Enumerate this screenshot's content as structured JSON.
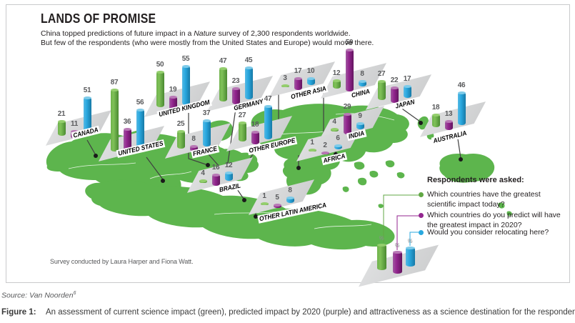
{
  "figure": {
    "source_prefix": "Source: Van Noorden",
    "source_superscript": "6",
    "caption_label": "Figure 1:",
    "caption_text": "An assessment of current science impact (green), predicted impact by 2020 (purple) and attractiveness as a science destination for the respondents."
  },
  "infographic": {
    "title": "LANDS OF PROMISE",
    "subtitle_line1_pre": "China topped predictions of future impact in a ",
    "subtitle_line1_italic": "Nature",
    "subtitle_line1_post": " survey of 2,300 respondents worldwide.",
    "subtitle_line2": "But few of the respondents (who were mostly from the United States and Europe) would move there.",
    "credit": "Survey conducted by Laura Harper and Fiona Watt."
  },
  "legend": {
    "heading": "Respondents were asked:",
    "items": [
      {
        "color": "#61a744",
        "text": "Which countries have the greatest scientific impact today?"
      },
      {
        "color": "#93268f",
        "text": "Which countries do you predict will have the greatest impact in 2020?"
      },
      {
        "color": "#29a8df",
        "text": "Would you consider relocating here?"
      }
    ],
    "axis_unit": "%"
  },
  "chart_data": {
    "type": "bar",
    "title": "LANDS OF PROMISE",
    "unit": "% of respondents",
    "legend_position": "right-bottom",
    "series": [
      {
        "name": "Which countries have the greatest scientific impact today?",
        "color": "#61a744",
        "color_key": "green"
      },
      {
        "name": "Which countries do you predict will have the greatest impact in 2020?",
        "color": "#93268f",
        "color_key": "purple"
      },
      {
        "name": "Would you consider relocating here?",
        "color": "#29a8df",
        "color_key": "blue"
      }
    ],
    "groups": [
      {
        "label": "CANADA",
        "values": [
          21,
          11,
          51
        ]
      },
      {
        "label": "UNITED STATES",
        "values": [
          87,
          36,
          56
        ]
      },
      {
        "label": "UNITED KINGDOM",
        "values": [
          50,
          19,
          55
        ]
      },
      {
        "label": "FRANCE",
        "values": [
          25,
          8,
          37
        ]
      },
      {
        "label": "GERMANY",
        "values": [
          47,
          23,
          45
        ]
      },
      {
        "label": "OTHER EUROPE",
        "values": [
          27,
          18,
          47
        ]
      },
      {
        "label": "OTHER ASIA",
        "values": [
          3,
          17,
          10
        ]
      },
      {
        "label": "CHINA",
        "values": [
          12,
          59,
          8
        ]
      },
      {
        "label": "INDIA",
        "values": [
          4,
          29,
          9
        ]
      },
      {
        "label": "AFRICA",
        "values": [
          1,
          2,
          6
        ]
      },
      {
        "label": "JAPAN",
        "values": [
          27,
          22,
          17
        ]
      },
      {
        "label": "AUSTRALIA",
        "values": [
          18,
          13,
          46
        ]
      },
      {
        "label": "BRAZIL",
        "values": [
          4,
          16,
          12
        ]
      },
      {
        "label": "OTHER LATIN AMERICA",
        "values": [
          1,
          5,
          8
        ]
      }
    ]
  },
  "colors": {
    "map_green": "#5db54d",
    "bar_green": "#61a744",
    "bar_purple": "#93268f",
    "bar_blue": "#29a8df",
    "platform_gray": "#d6d7d8",
    "connector": "#404041"
  }
}
